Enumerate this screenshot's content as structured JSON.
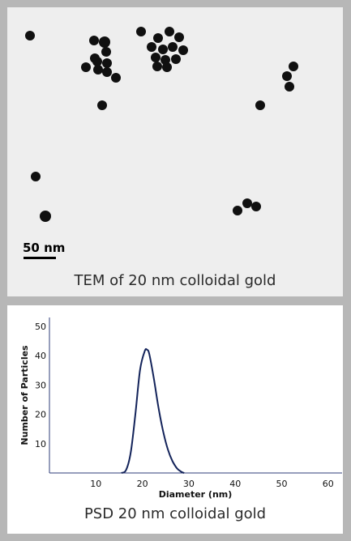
{
  "tem": {
    "caption": "TEM of 20 nm colloidal gold",
    "scale_bar_label": "50 nm"
  },
  "psd": {
    "caption": "PSD 20 nm colloidal gold"
  },
  "chart_data": {
    "type": "line",
    "title": "",
    "xlabel": "Diameter (nm)",
    "ylabel": "Number of Particles",
    "xlim": [
      0,
      63
    ],
    "ylim": [
      0,
      53
    ],
    "xticks": [
      10,
      20,
      30,
      40,
      50,
      60
    ],
    "yticks": [
      10,
      20,
      30,
      40,
      50
    ],
    "grid": false,
    "series": [
      {
        "x": [
          15.5,
          16.5,
          17.5,
          18.5,
          19.5,
          20.5,
          21.0,
          21.5,
          22.5,
          23.5,
          24.5,
          25.5,
          26.5,
          27.5,
          28.5,
          29.0
        ],
        "y": [
          0,
          1,
          7,
          20,
          35,
          41.5,
          42,
          40.5,
          32,
          22,
          14,
          8,
          4,
          1.5,
          0.3,
          0
        ]
      }
    ]
  }
}
